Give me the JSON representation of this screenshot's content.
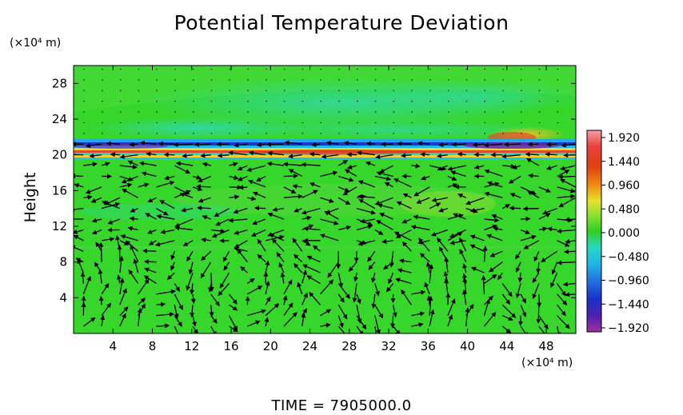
{
  "chart_data": {
    "type": "heatmap",
    "title": "Potential Temperature Deviation",
    "ylabel": "Height",
    "y_unit": "(×10⁴ m)",
    "x_unit": "(×10⁴ m)",
    "x_ticks": [
      4,
      8,
      12,
      16,
      20,
      24,
      28,
      32,
      36,
      40,
      44,
      48
    ],
    "y_ticks": [
      4,
      8,
      12,
      16,
      20,
      24,
      28
    ],
    "xlim": [
      0,
      51
    ],
    "ylim": [
      0,
      30
    ],
    "colorbar": {
      "labels": [
        "1.920",
        "1.440",
        "0.960",
        "0.480",
        "0.000",
        "−0.480",
        "−0.960",
        "−1.440",
        "−1.920"
      ],
      "values": [
        1.92,
        1.44,
        0.96,
        0.48,
        0.0,
        -0.48,
        -0.96,
        -1.44,
        -1.92
      ],
      "colors": [
        "#f08888",
        "#e03c1c",
        "#f08a10",
        "#e8e028",
        "#30d020",
        "#28d8c0",
        "#20a8e8",
        "#1838d0",
        "#8020a0"
      ]
    },
    "field_description": "Background field near 0.000 (green); strong layered anomalies between heights 19 and 22; weaker positive anomaly near x 45–48, height 23; negative (cyan) region around height 24–26 for x 15–45",
    "footer": "TIME  =  7905000.0"
  }
}
